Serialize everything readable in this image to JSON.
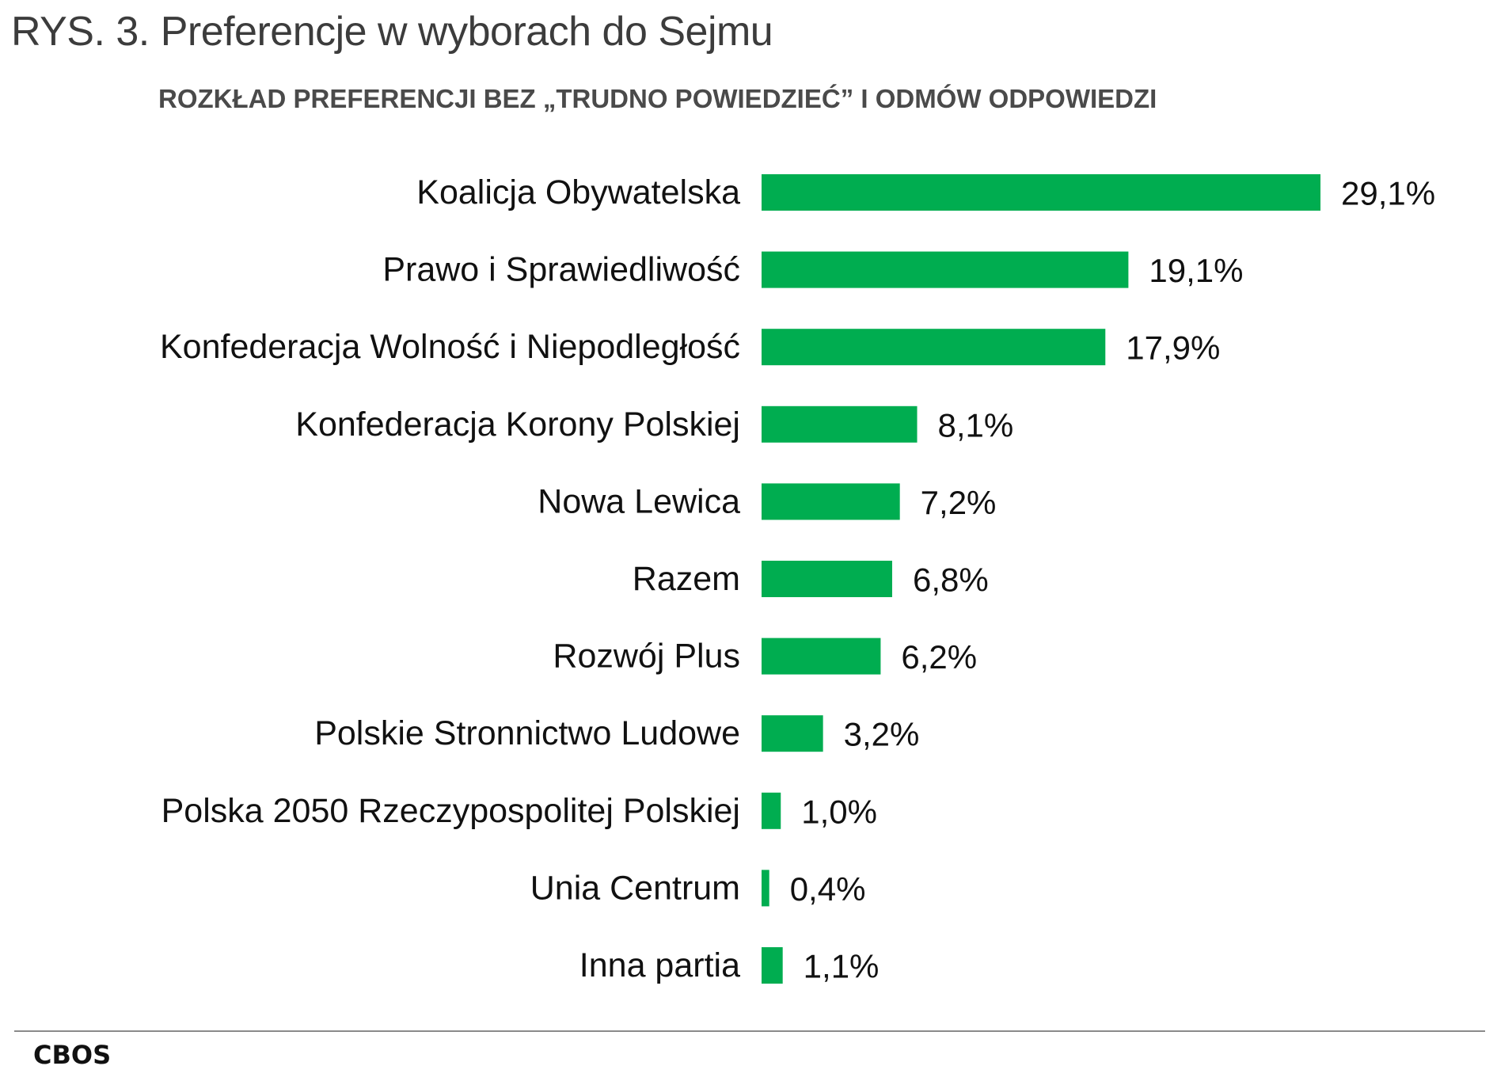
{
  "chart_data": {
    "type": "bar",
    "orientation": "horizontal",
    "title": "RYS. 3. Preferencje w wyborach do Sejmu",
    "subtitle": "ROZKŁAD PREFERENCJI BEZ „TRUDNO POWIEDZIEĆ” I ODMÓW ODPOWIEDZI",
    "categories": [
      "Koalicja Obywatelska",
      "Prawo i Sprawiedliwość",
      "Konfederacja Wolność i Niepodległość",
      "Konfederacja Korony Polskiej",
      "Nowa Lewica",
      "Razem",
      "Rozwój Plus",
      "Polskie Stronnictwo Ludowe",
      "Polska 2050 Rzeczypospolitej Polskiej",
      "Unia Centrum",
      "Inna partia"
    ],
    "values": [
      29.1,
      19.1,
      17.9,
      8.1,
      7.2,
      6.8,
      6.2,
      3.2,
      1.0,
      0.4,
      1.1
    ],
    "value_labels": [
      "29,1%",
      "19,1%",
      "17,9%",
      "8,1%",
      "7,2%",
      "6,8%",
      "6,2%",
      "3,2%",
      "1,0%",
      "0,4%",
      "1,1%"
    ],
    "unit": "%",
    "xlim": [
      0,
      29.1
    ],
    "grid": false,
    "legend": "none",
    "bar_color": "#00ad50"
  },
  "source": "CBOS"
}
